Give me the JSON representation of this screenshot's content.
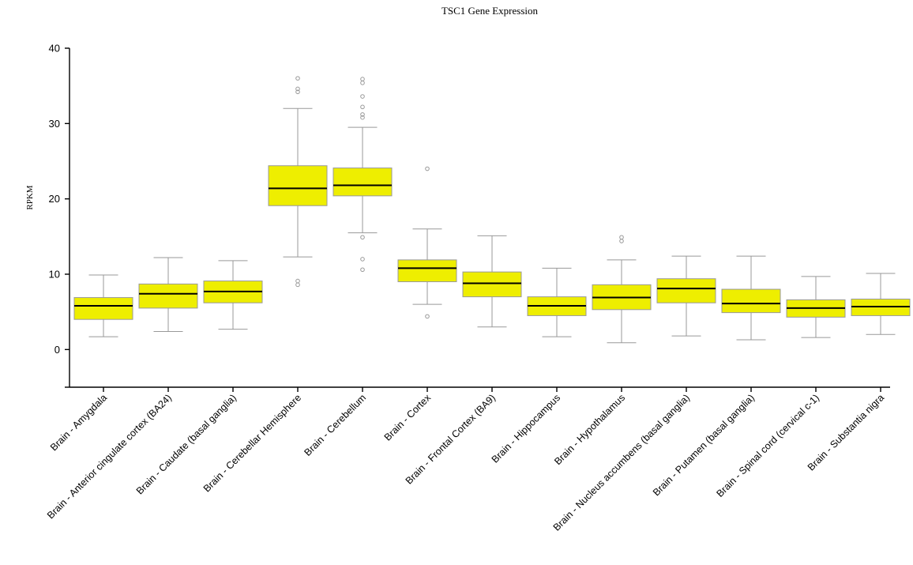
{
  "chart_data": {
    "type": "box",
    "title": "TSC1 Gene Expression",
    "ylabel": "RPKM",
    "xlabel": "",
    "ylim": [
      -5,
      40
    ],
    "yticks": [
      0,
      10,
      20,
      30,
      40
    ],
    "grid": false,
    "colors": {
      "box_fill": "#eeee00",
      "box_stroke": "#999999",
      "median": "#000000",
      "outlier": "#999999"
    },
    "categories": [
      "Brain - Amygdala",
      "Brain - Anterior cingulate cortex (BA24)",
      "Brain - Caudate (basal ganglia)",
      "Brain - Cerebellar Hemisphere",
      "Brain - Cerebellum",
      "Brain - Cortex",
      "Brain - Frontal Cortex (BA9)",
      "Brain - Hippocampus",
      "Brain - Hypothalamus",
      "Brain - Nucleus accumbens (basal ganglia)",
      "Brain - Putamen (basal ganglia)",
      "Brain - Spinal cord (cervical c-1)",
      "Brain - Substantia nigra"
    ],
    "boxes": [
      {
        "min": 1.7,
        "q1": 4.0,
        "median": 5.8,
        "q3": 6.9,
        "max": 9.9,
        "outliers": []
      },
      {
        "min": 2.4,
        "q1": 5.5,
        "median": 7.4,
        "q3": 8.7,
        "max": 12.2,
        "outliers": []
      },
      {
        "min": 2.7,
        "q1": 6.2,
        "median": 7.7,
        "q3": 9.1,
        "max": 11.8,
        "outliers": []
      },
      {
        "min": 12.3,
        "q1": 19.1,
        "median": 21.4,
        "q3": 24.4,
        "max": 32.0,
        "outliers": [
          8.6,
          9.1,
          34.2,
          34.6,
          36.0
        ]
      },
      {
        "min": 15.5,
        "q1": 20.4,
        "median": 21.8,
        "q3": 24.1,
        "max": 29.5,
        "outliers": [
          10.6,
          12.0,
          14.9,
          30.8,
          31.2,
          32.2,
          33.6,
          35.4,
          35.9
        ]
      },
      {
        "min": 6.0,
        "q1": 9.0,
        "median": 10.8,
        "q3": 11.9,
        "max": 16.0,
        "outliers": [
          4.4,
          24.0
        ]
      },
      {
        "min": 3.0,
        "q1": 7.0,
        "median": 8.8,
        "q3": 10.3,
        "max": 15.1,
        "outliers": []
      },
      {
        "min": 1.7,
        "q1": 4.5,
        "median": 5.8,
        "q3": 7.0,
        "max": 10.8,
        "outliers": []
      },
      {
        "min": 0.9,
        "q1": 5.3,
        "median": 6.9,
        "q3": 8.6,
        "max": 11.9,
        "outliers": [
          14.4,
          14.9
        ]
      },
      {
        "min": 1.8,
        "q1": 6.2,
        "median": 8.1,
        "q3": 9.4,
        "max": 12.4,
        "outliers": []
      },
      {
        "min": 1.3,
        "q1": 4.9,
        "median": 6.1,
        "q3": 8.0,
        "max": 12.4,
        "outliers": []
      },
      {
        "min": 1.6,
        "q1": 4.3,
        "median": 5.5,
        "q3": 6.6,
        "max": 9.7,
        "outliers": []
      },
      {
        "min": 2.0,
        "q1": 4.5,
        "median": 5.7,
        "q3": 6.7,
        "max": 10.1,
        "outliers": []
      }
    ]
  }
}
